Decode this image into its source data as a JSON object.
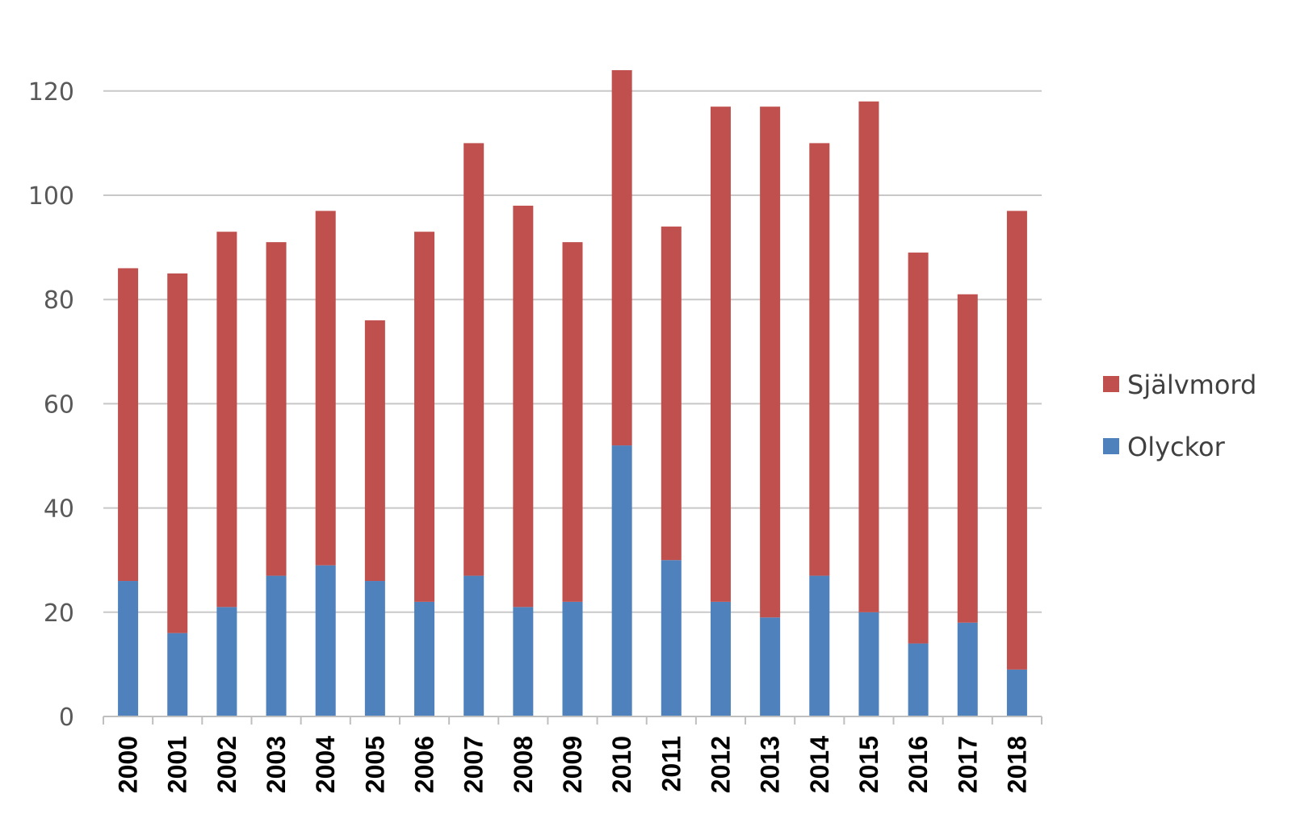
{
  "chart_data": {
    "type": "bar",
    "stacked": true,
    "categories": [
      "2000",
      "2001",
      "2002",
      "2003",
      "2004",
      "2005",
      "2006",
      "2007",
      "2008",
      "2009",
      "2010",
      "2011",
      "2012",
      "2013",
      "2014",
      "2015",
      "2016",
      "2017",
      "2018"
    ],
    "series": [
      {
        "name": "Olyckor",
        "color": "#4f81bd",
        "values": [
          26,
          16,
          21,
          27,
          29,
          26,
          22,
          27,
          21,
          22,
          52,
          30,
          22,
          19,
          27,
          20,
          14,
          18,
          9
        ]
      },
      {
        "name": "Självmord",
        "color": "#c0504d",
        "values": [
          60,
          69,
          72,
          64,
          68,
          50,
          71,
          83,
          77,
          69,
          72,
          64,
          95,
          98,
          83,
          98,
          75,
          63,
          88
        ]
      }
    ],
    "legend_order": [
      "Självmord",
      "Olyckor"
    ],
    "ylim": [
      0,
      130
    ],
    "yticks": [
      0,
      20,
      40,
      60,
      80,
      100,
      120
    ],
    "grid": true,
    "legend_position": "right",
    "title": "",
    "xlabel": "",
    "ylabel": ""
  }
}
